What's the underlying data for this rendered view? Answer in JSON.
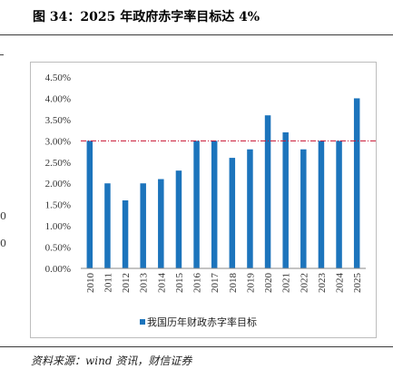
{
  "title": "图 34：2025 年政府赤字率目标达 4%",
  "source": "资料来源：wind 资讯，财信证券",
  "chart_data": {
    "type": "bar",
    "categories": [
      "2010",
      "2011",
      "2012",
      "2013",
      "2014",
      "2015",
      "2016",
      "2017",
      "2018",
      "2019",
      "2020",
      "2021",
      "2022",
      "2023",
      "2024",
      "2025"
    ],
    "series": [
      {
        "name": "我国历年财政赤字率目标",
        "values": [
          3.0,
          2.0,
          1.6,
          2.0,
          2.1,
          2.3,
          3.0,
          3.0,
          2.6,
          2.8,
          3.6,
          3.2,
          2.8,
          3.0,
          3.0,
          4.0
        ]
      }
    ],
    "reference_line": 3.0,
    "ylim": [
      0,
      4.5
    ],
    "yticks": [
      "0.00%",
      "0.50%",
      "1.00%",
      "1.50%",
      "2.00%",
      "2.50%",
      "3.00%",
      "3.50%",
      "4.00%",
      "4.50%"
    ],
    "legend_position": "bottom",
    "colors": {
      "bar": "#1c74bc",
      "reference_line": "#c8102e"
    }
  }
}
